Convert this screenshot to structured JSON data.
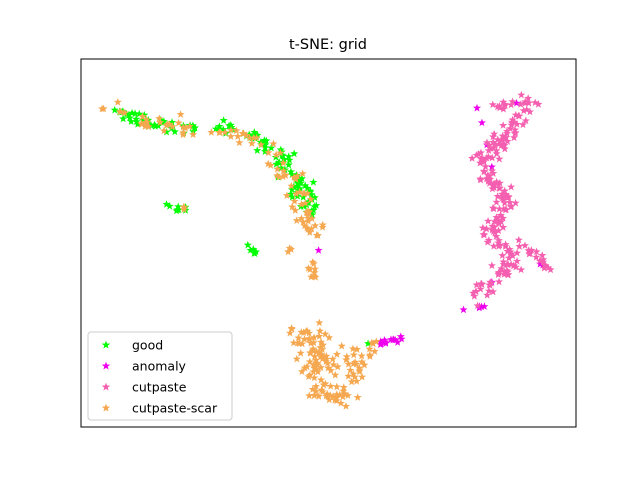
{
  "chart_data": {
    "type": "scatter",
    "title": "t-SNE: grid",
    "xlabel": "",
    "ylabel": "",
    "axes_ticks": "none",
    "grid": false,
    "legend_placement": "lower-left",
    "marker": "star",
    "series": [
      {
        "name": "good",
        "color": "#00ff00",
        "clusters": [
          {
            "path": [
              [
                0.05,
                0.2
              ],
              [
                0.1,
                0.23
              ],
              [
                0.15,
                0.27
              ],
              [
                0.2,
                0.29
              ],
              [
                0.23,
                0.28
              ]
            ],
            "n": 45,
            "spread": 0.012
          },
          {
            "path": [
              [
                0.27,
                0.28
              ],
              [
                0.32,
                0.3
              ],
              [
                0.36,
                0.34
              ],
              [
                0.4,
                0.39
              ],
              [
                0.42,
                0.46
              ],
              [
                0.45,
                0.54
              ],
              [
                0.47,
                0.62
              ]
            ],
            "n": 95,
            "spread": 0.013
          },
          {
            "path": [
              [
                0.18,
                0.61
              ],
              [
                0.22,
                0.62
              ]
            ],
            "n": 8,
            "spread": 0.006
          },
          {
            "path": [
              [
                0.34,
                0.77
              ],
              [
                0.36,
                0.79
              ]
            ],
            "n": 6,
            "spread": 0.005
          },
          {
            "path": [
              [
                0.58,
                1.16
              ]
            ],
            "n": 1,
            "spread": 0.0
          }
        ]
      },
      {
        "name": "anomaly",
        "color": "#ee00ee",
        "clusters": [
          {
            "path": [
              [
                0.6,
                1.16
              ],
              [
                0.65,
                1.14
              ]
            ],
            "n": 14,
            "spread": 0.004
          },
          {
            "path": [
              [
                0.8,
                0.2
              ]
            ],
            "n": 1,
            "spread": 0.0
          },
          {
            "path": [
              [
                0.81,
                0.26
              ]
            ],
            "n": 1,
            "spread": 0.0
          },
          {
            "path": [
              [
                0.82,
                0.35
              ]
            ],
            "n": 1,
            "spread": 0.0
          },
          {
            "path": [
              [
                0.83,
                0.44
              ]
            ],
            "n": 1,
            "spread": 0.0
          },
          {
            "path": [
              [
                0.77,
                1.03
              ],
              [
                0.82,
                1.0
              ]
            ],
            "n": 5,
            "spread": 0.003
          },
          {
            "path": [
              [
                0.83,
                0.91
              ]
            ],
            "n": 1,
            "spread": 0.0
          },
          {
            "path": [
              [
                0.93,
                0.83
              ]
            ],
            "n": 2,
            "spread": 0.003
          },
          {
            "path": [
              [
                0.88,
                0.18
              ]
            ],
            "n": 1,
            "spread": 0.0
          },
          {
            "path": [
              [
                0.48,
                0.78
              ]
            ],
            "n": 1,
            "spread": 0.0
          }
        ]
      },
      {
        "name": "cutpaste",
        "color": "#f55fb0",
        "clusters": [
          {
            "path": [
              [
                0.83,
                0.2
              ],
              [
                0.87,
                0.17
              ],
              [
                0.91,
                0.16
              ],
              [
                0.89,
                0.22
              ],
              [
                0.87,
                0.29
              ],
              [
                0.84,
                0.35
              ],
              [
                0.81,
                0.41
              ],
              [
                0.83,
                0.49
              ],
              [
                0.86,
                0.56
              ],
              [
                0.85,
                0.63
              ],
              [
                0.83,
                0.7
              ]
            ],
            "n": 145,
            "spread": 0.011
          },
          {
            "path": [
              [
                0.83,
                0.72
              ],
              [
                0.87,
                0.78
              ],
              [
                0.86,
                0.86
              ],
              [
                0.82,
                0.93
              ],
              [
                0.79,
                0.99
              ]
            ],
            "n": 60,
            "spread": 0.012
          },
          {
            "path": [
              [
                0.9,
                0.77
              ],
              [
                0.93,
                0.81
              ],
              [
                0.94,
                0.87
              ]
            ],
            "n": 18,
            "spread": 0.008
          }
        ]
      },
      {
        "name": "cutpaste-scar",
        "color": "#f5a850",
        "clusters": [
          {
            "path": [
              [
                0.05,
                0.2
              ],
              [
                0.12,
                0.24
              ],
              [
                0.17,
                0.27
              ],
              [
                0.22,
                0.3
              ]
            ],
            "n": 30,
            "spread": 0.014
          },
          {
            "path": [
              [
                0.26,
                0.29
              ],
              [
                0.31,
                0.3
              ],
              [
                0.35,
                0.33
              ],
              [
                0.39,
                0.38
              ],
              [
                0.41,
                0.46
              ],
              [
                0.44,
                0.53
              ],
              [
                0.46,
                0.62
              ],
              [
                0.47,
                0.7
              ]
            ],
            "n": 70,
            "spread": 0.014
          },
          {
            "path": [
              [
                0.21,
                0.61
              ]
            ],
            "n": 3,
            "spread": 0.004
          },
          {
            "path": [
              [
                0.42,
                0.78
              ]
            ],
            "n": 3,
            "spread": 0.004
          },
          {
            "path": [
              [
                0.47,
                0.82
              ],
              [
                0.47,
                0.89
              ]
            ],
            "n": 10,
            "spread": 0.005
          },
          {
            "path": [
              [
                0.44,
                1.1
              ],
              [
                0.46,
                1.21
              ],
              [
                0.48,
                1.3
              ],
              [
                0.5,
                1.36
              ],
              [
                0.51,
                1.4
              ],
              [
                0.53,
                1.35
              ],
              [
                0.55,
                1.28
              ],
              [
                0.57,
                1.21
              ],
              [
                0.59,
                1.16
              ]
            ],
            "n": 110,
            "spread": 0.016
          },
          {
            "path": [
              [
                0.47,
                1.1
              ],
              [
                0.49,
                1.2
              ],
              [
                0.52,
                1.27
              ]
            ],
            "n": 25,
            "spread": 0.014
          }
        ]
      }
    ]
  }
}
